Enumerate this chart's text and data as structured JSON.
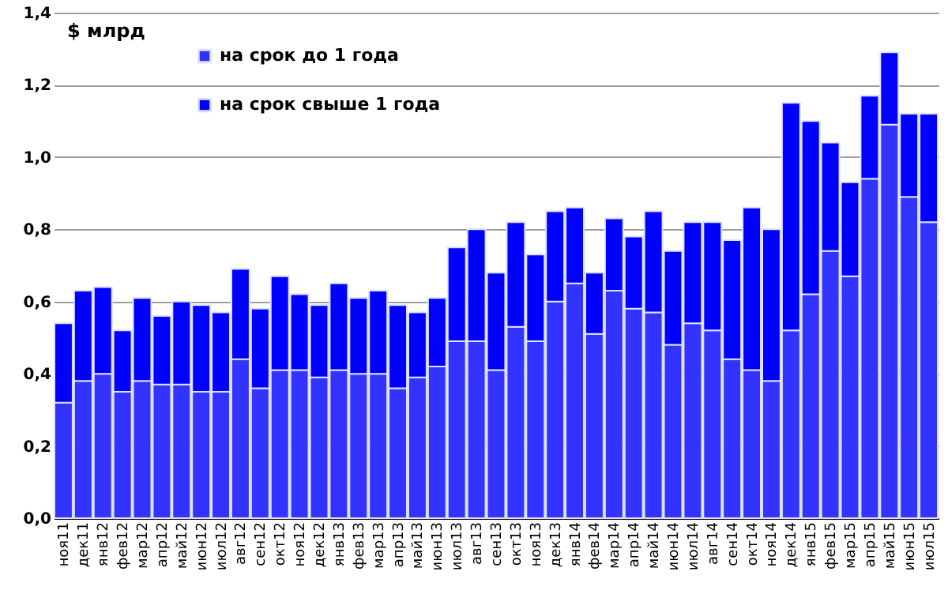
{
  "chart_data": {
    "type": "bar",
    "stacked": true,
    "ylabel": "$ млрд",
    "categories": [
      "ноя11",
      "дек11",
      "янв12",
      "фев12",
      "мар12",
      "апр12",
      "май12",
      "июн12",
      "июл12",
      "авг12",
      "сен12",
      "окт12",
      "ноя12",
      "дек12",
      "янв13",
      "фев13",
      "мар13",
      "апр13",
      "май13",
      "июн13",
      "июл13",
      "авг13",
      "сен13",
      "окт13",
      "ноя13",
      "дек13",
      "янв14",
      "фев14",
      "мар14",
      "апр14",
      "май14",
      "июн14",
      "июл14",
      "авг14",
      "сен14",
      "окт14",
      "ноя14",
      "дек14",
      "янв15",
      "фев15",
      "мар15",
      "апр15",
      "май15",
      "июн15",
      "июл15"
    ],
    "series": [
      {
        "name": "на срок до 1 года",
        "color": "#3333ff",
        "values": [
          0.32,
          0.38,
          0.4,
          0.35,
          0.38,
          0.37,
          0.37,
          0.35,
          0.35,
          0.44,
          0.36,
          0.41,
          0.41,
          0.39,
          0.41,
          0.4,
          0.4,
          0.36,
          0.39,
          0.42,
          0.49,
          0.49,
          0.41,
          0.53,
          0.49,
          0.6,
          0.65,
          0.51,
          0.63,
          0.58,
          0.57,
          0.48,
          0.54,
          0.52,
          0.44,
          0.41,
          0.38,
          0.52,
          0.62,
          0.74,
          0.67,
          0.94,
          1.09,
          0.89,
          0.82
        ]
      },
      {
        "name": "на срок свыше 1 года",
        "color": "#0000ff",
        "values": [
          0.22,
          0.25,
          0.24,
          0.17,
          0.23,
          0.19,
          0.23,
          0.24,
          0.22,
          0.25,
          0.22,
          0.26,
          0.21,
          0.2,
          0.24,
          0.21,
          0.23,
          0.23,
          0.18,
          0.19,
          0.26,
          0.31,
          0.27,
          0.29,
          0.24,
          0.25,
          0.21,
          0.17,
          0.2,
          0.2,
          0.28,
          0.26,
          0.28,
          0.3,
          0.33,
          0.45,
          0.42,
          0.63,
          0.48,
          0.3,
          0.26,
          0.23,
          0.2,
          0.23,
          0.3
        ]
      }
    ],
    "ylim": [
      0,
      1.4
    ],
    "yticks": [
      {
        "value": 0,
        "label": "0,0"
      },
      {
        "value": 0.2,
        "label": "0,2"
      },
      {
        "value": 0.4,
        "label": "0,4"
      },
      {
        "value": 0.6,
        "label": "0,6"
      },
      {
        "value": 0.8,
        "label": "0,8"
      },
      {
        "value": 1.0,
        "label": "1,0"
      },
      {
        "value": 1.2,
        "label": "1,2"
      },
      {
        "value": 1.4,
        "label": "1,4"
      }
    ],
    "grid": "y",
    "legend": "top left"
  }
}
